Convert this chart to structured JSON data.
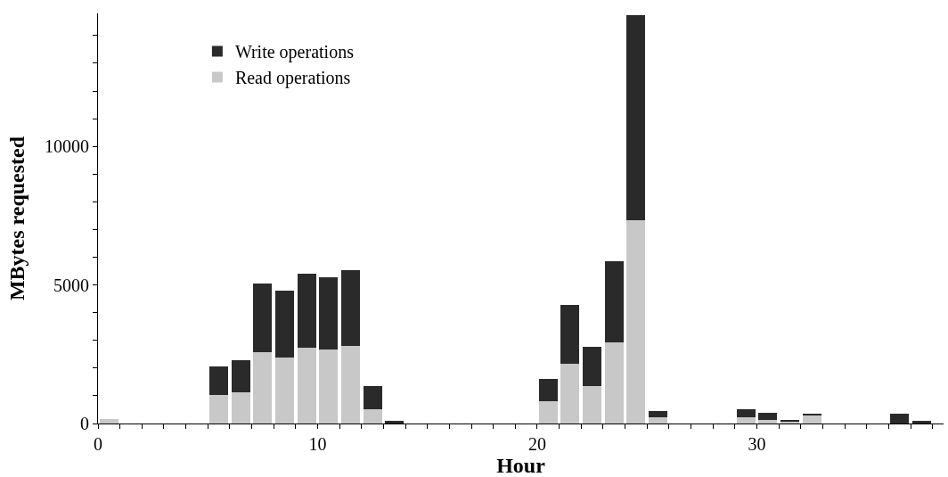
{
  "chart_data": {
    "type": "bar",
    "stacked": true,
    "xlabel": "Hour",
    "ylabel": "MBytes requested",
    "x": [
      0.5,
      1.5,
      2.5,
      3.5,
      4.5,
      5.5,
      6.5,
      7.5,
      8.5,
      9.5,
      10.5,
      11.5,
      12.5,
      13.5,
      14.5,
      15.5,
      16.5,
      17.5,
      18.5,
      19.5,
      20.5,
      21.5,
      22.5,
      23.5,
      24.5,
      25.5,
      26.5,
      27.5,
      28.5,
      29.5,
      30.5,
      31.5,
      32.5,
      33.5,
      34.5,
      35.5,
      36.5,
      37.5
    ],
    "series": [
      {
        "name": "Read operations",
        "color": "#c8c8c8",
        "values": [
          150,
          null,
          null,
          null,
          null,
          1020,
          1140,
          2560,
          2380,
          2740,
          2660,
          2800,
          510,
          0,
          0,
          0,
          0,
          0,
          0,
          0,
          790,
          2140,
          1350,
          2920,
          7340,
          220,
          0,
          0,
          0,
          220,
          140,
          80,
          300,
          0,
          0,
          0,
          null,
          0
        ]
      },
      {
        "name": "Write operations",
        "color": "#2a2a2a",
        "values": [
          0,
          null,
          null,
          null,
          null,
          1040,
          1150,
          2480,
          2420,
          2680,
          2620,
          2740,
          830,
          100,
          0,
          0,
          0,
          0,
          0,
          0,
          820,
          2150,
          1420,
          2920,
          7410,
          230,
          0,
          0,
          0,
          310,
          240,
          40,
          70,
          0,
          0,
          0,
          350,
          100
        ]
      }
    ],
    "xlim": [
      0,
      38.5
    ],
    "xticks": [
      0,
      {
        "value": 1,
        "label": null
      },
      {
        "value": 2,
        "label": null
      },
      {
        "value": 3,
        "label": null
      },
      {
        "value": 4,
        "label": null
      },
      {
        "value": 5,
        "label": null
      },
      {
        "value": 6,
        "label": null
      },
      {
        "value": 7,
        "label": null
      },
      {
        "value": 8,
        "label": null
      },
      {
        "value": 9,
        "label": null
      },
      10,
      {
        "value": 11,
        "label": null
      },
      {
        "value": 12,
        "label": null
      },
      {
        "value": 13,
        "label": null
      },
      {
        "value": 14,
        "label": null
      },
      {
        "value": 15,
        "label": null
      },
      {
        "value": 16,
        "label": null
      },
      {
        "value": 17,
        "label": null
      },
      {
        "value": 18,
        "label": null
      },
      {
        "value": 19,
        "label": null
      },
      20,
      {
        "value": 21,
        "label": null
      },
      {
        "value": 22,
        "label": null
      },
      {
        "value": 23,
        "label": null
      },
      {
        "value": 24,
        "label": null
      },
      {
        "value": 25,
        "label": null
      },
      {
        "value": 26,
        "label": null
      },
      {
        "value": 27,
        "label": null
      },
      {
        "value": 28,
        "label": null
      },
      {
        "value": 29,
        "label": null
      },
      30,
      {
        "value": 31,
        "label": null
      },
      {
        "value": 32,
        "label": null
      },
      {
        "value": 33,
        "label": null
      },
      {
        "value": 34,
        "label": null
      },
      {
        "value": 35,
        "label": null
      },
      {
        "value": 36,
        "label": null
      },
      {
        "value": 37,
        "label": null
      },
      {
        "value": 38,
        "label": null
      }
    ],
    "ylim": [
      0,
      14800
    ],
    "yticks": [
      0,
      {
        "value": 1000,
        "label": null
      },
      {
        "value": 2000,
        "label": null
      },
      {
        "value": 3000,
        "label": null
      },
      {
        "value": 4000,
        "label": null
      },
      5000,
      {
        "value": 6000,
        "label": null
      },
      {
        "value": 7000,
        "label": null
      },
      {
        "value": 8000,
        "label": null
      },
      {
        "value": 9000,
        "label": null
      },
      10000,
      {
        "value": 11000,
        "label": null
      },
      {
        "value": 12000,
        "label": null
      },
      {
        "value": 13000,
        "label": null
      },
      {
        "value": 14000,
        "label": null
      }
    ],
    "legend": "top left"
  }
}
